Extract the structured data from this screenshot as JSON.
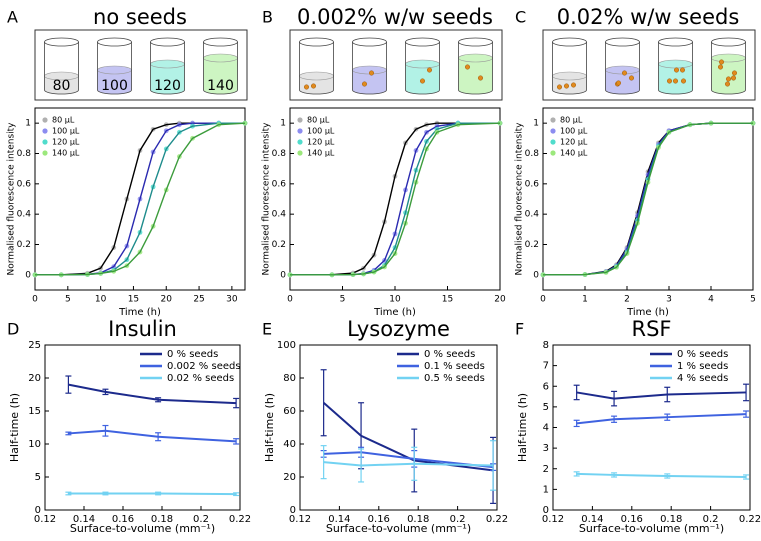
{
  "chart_data": [
    {
      "type": "line",
      "label": "A",
      "title": "no seeds",
      "beaker_labels": [
        "80",
        "100",
        "120",
        "140"
      ],
      "x_label": "Time (h)",
      "y_label": "Normalised fluorescence intensity",
      "x": [
        0,
        4,
        8,
        10,
        12,
        14,
        16,
        18,
        20,
        22,
        24,
        28,
        32
      ],
      "xlim": [
        0,
        32
      ],
      "xticks": [
        0,
        5,
        10,
        15,
        20,
        25,
        30
      ],
      "ylim": [
        -0.1,
        1.1
      ],
      "yticks": [
        0,
        0.2,
        0.4,
        0.6,
        0.8,
        1
      ],
      "legend": "upper left",
      "series": [
        {
          "name": "80 μL",
          "color": "#b0b0b0",
          "line_color": "#000000",
          "values": [
            0,
            0,
            0.01,
            0.044,
            0.18,
            0.5,
            0.82,
            0.96,
            0.99,
            1,
            1,
            1,
            1
          ]
        },
        {
          "name": "100 μL",
          "color": "#8c8cf0",
          "line_color": "#2a2ab0",
          "values": [
            0,
            0,
            0.003,
            0.013,
            0.054,
            0.19,
            0.5,
            0.81,
            0.95,
            0.99,
            1,
            1,
            1
          ]
        },
        {
          "name": "120 μL",
          "color": "#50dccc",
          "line_color": "#1e8c8c",
          "values": [
            0,
            0,
            0.002,
            0.009,
            0.031,
            0.1,
            0.28,
            0.58,
            0.83,
            0.94,
            0.98,
            1,
            1
          ]
        },
        {
          "name": "140 μL",
          "color": "#9ce87c",
          "line_color": "#3c9c3c",
          "values": [
            0,
            0,
            0.003,
            0.009,
            0.023,
            0.06,
            0.15,
            0.32,
            0.56,
            0.78,
            0.9,
            0.99,
            1
          ]
        }
      ]
    },
    {
      "type": "line",
      "label": "B",
      "title": "0.002% w/w seeds",
      "x_label": "Time (h)",
      "y_label": "Normalised fluorescence intensity",
      "x": [
        0,
        4,
        6,
        7,
        8,
        9,
        10,
        11,
        12,
        13,
        14,
        16,
        20
      ],
      "xlim": [
        0,
        20
      ],
      "xticks": [
        0,
        5,
        10,
        15,
        20
      ],
      "ylim": [
        -0.1,
        1.1
      ],
      "yticks": [
        0,
        0.2,
        0.4,
        0.6,
        0.8,
        1
      ],
      "legend": "upper left",
      "series": [
        {
          "name": "80 μL",
          "color": "#b0b0b0",
          "line_color": "#000000",
          "values": [
            0,
            0.001,
            0.012,
            0.043,
            0.13,
            0.35,
            0.65,
            0.87,
            0.96,
            0.99,
            1,
            1,
            1
          ]
        },
        {
          "name": "100 μL",
          "color": "#8c8cf0",
          "line_color": "#2a2ab0",
          "values": [
            0,
            0,
            0.002,
            0.009,
            0.03,
            0.095,
            0.27,
            0.56,
            0.82,
            0.94,
            0.98,
            1,
            1
          ]
        },
        {
          "name": "120 μL",
          "color": "#50dccc",
          "line_color": "#1e8c8c",
          "values": [
            0,
            0,
            0.002,
            0.006,
            0.02,
            0.063,
            0.18,
            0.41,
            0.69,
            0.88,
            0.96,
            1,
            1
          ]
        },
        {
          "name": "140 μL",
          "color": "#9ce87c",
          "line_color": "#3c9c3c",
          "values": [
            0,
            0,
            0.002,
            0.006,
            0.018,
            0.052,
            0.14,
            0.34,
            0.61,
            0.83,
            0.94,
            0.99,
            1
          ]
        }
      ]
    },
    {
      "type": "line",
      "label": "C",
      "title": "0.02% w/w seeds",
      "x_label": "Time (h)",
      "y_label": "Normalised fluorescence intensity",
      "x": [
        0,
        1,
        1.5,
        1.75,
        2,
        2.25,
        2.5,
        2.75,
        3,
        3.5,
        4,
        5
      ],
      "xlim": [
        0,
        5
      ],
      "xticks": [
        0,
        1,
        2,
        3,
        4,
        5
      ],
      "ylim": [
        -0.1,
        1.1
      ],
      "yticks": [
        0,
        0.2,
        0.4,
        0.6,
        0.8,
        1
      ],
      "legend": "upper left",
      "series": [
        {
          "name": "80 μL",
          "color": "#b0b0b0",
          "line_color": "#000000",
          "values": [
            0,
            0.002,
            0.023,
            0.067,
            0.18,
            0.41,
            0.68,
            0.87,
            0.95,
            0.99,
            1,
            1
          ]
        },
        {
          "name": "100 μL",
          "color": "#8c8cf0",
          "line_color": "#2a2ab0",
          "values": [
            0,
            0.002,
            0.02,
            0.06,
            0.17,
            0.39,
            0.66,
            0.86,
            0.95,
            0.99,
            1,
            1
          ]
        },
        {
          "name": "120 μL",
          "color": "#50dccc",
          "line_color": "#1e8c8c",
          "values": [
            0,
            0.002,
            0.018,
            0.055,
            0.15,
            0.36,
            0.63,
            0.85,
            0.94,
            0.99,
            1,
            1
          ]
        },
        {
          "name": "140 μL",
          "color": "#9ce87c",
          "line_color": "#3c9c3c",
          "values": [
            0,
            0.002,
            0.016,
            0.05,
            0.14,
            0.34,
            0.61,
            0.84,
            0.94,
            0.99,
            1,
            1
          ]
        }
      ]
    },
    {
      "type": "errorline",
      "label": "D",
      "title": "Insulin",
      "x_label": "Surface-to-volume (mm⁻¹)",
      "y_label": "Half-time (h)",
      "x": [
        0.132,
        0.151,
        0.178,
        0.218
      ],
      "xlim": [
        0.12,
        0.22
      ],
      "xticks": [
        0.12,
        0.14,
        0.16,
        0.18,
        0.2,
        0.22
      ],
      "ylim": [
        0,
        25
      ],
      "yticks": [
        0,
        5,
        10,
        15,
        20,
        25
      ],
      "legend": "upper right",
      "series": [
        {
          "name": "0 % seeds",
          "color": "#1c2a8c",
          "values": [
            19,
            17.9,
            16.7,
            16.2
          ],
          "errors": [
            1.3,
            0.4,
            0.3,
            0.7
          ]
        },
        {
          "name": "0.002 % seeds",
          "color": "#3f62e0",
          "values": [
            11.6,
            12,
            11.1,
            10.4
          ],
          "errors": [
            0.2,
            0.8,
            0.6,
            0.4
          ]
        },
        {
          "name": "0.02 % seeds",
          "color": "#72d2f2",
          "values": [
            2.5,
            2.5,
            2.5,
            2.4
          ],
          "errors": [
            0.2,
            0.2,
            0.2,
            0.2
          ]
        }
      ]
    },
    {
      "type": "errorline",
      "label": "E",
      "title": "Lysozyme",
      "x_label": "Surface-to-volume (mm⁻¹)",
      "y_label": "Half-time (h)",
      "x": [
        0.132,
        0.151,
        0.178,
        0.218
      ],
      "xlim": [
        0.12,
        0.22
      ],
      "xticks": [
        0.12,
        0.14,
        0.16,
        0.18,
        0.2,
        0.22
      ],
      "ylim": [
        0,
        100
      ],
      "yticks": [
        0,
        20,
        40,
        60,
        80,
        100
      ],
      "legend": "upper right",
      "series": [
        {
          "name": "0 % seeds",
          "color": "#1c2a8c",
          "values": [
            65,
            45,
            30,
            24
          ],
          "errors": [
            20,
            20,
            19,
            20
          ]
        },
        {
          "name": "0.1 % seeds",
          "color": "#3f62e0",
          "values": [
            34,
            35,
            31,
            26
          ],
          "errors": [
            2,
            3,
            5,
            2
          ]
        },
        {
          "name": "0.5 % seeds",
          "color": "#72d2f2",
          "values": [
            29,
            27,
            28,
            27
          ],
          "errors": [
            10,
            10,
            10,
            15
          ]
        }
      ]
    },
    {
      "type": "errorline",
      "label": "F",
      "title": "RSF",
      "x_label": "Surface-to-volume (mm⁻¹)",
      "y_label": "Half-time (h)",
      "x": [
        0.132,
        0.151,
        0.178,
        0.218
      ],
      "xlim": [
        0.12,
        0.22
      ],
      "xticks": [
        0.12,
        0.14,
        0.16,
        0.18,
        0.2,
        0.22
      ],
      "ylim": [
        0,
        8
      ],
      "yticks": [
        0,
        1,
        2,
        3,
        4,
        5,
        6,
        7,
        8
      ],
      "legend": "upper right",
      "series": [
        {
          "name": "0 % seeds",
          "color": "#1c2a8c",
          "values": [
            5.7,
            5.4,
            5.6,
            5.7
          ],
          "errors": [
            0.35,
            0.35,
            0.35,
            0.4
          ]
        },
        {
          "name": "1 % seeds",
          "color": "#3f62e0",
          "values": [
            4.2,
            4.4,
            4.5,
            4.65
          ],
          "errors": [
            0.15,
            0.15,
            0.15,
            0.15
          ]
        },
        {
          "name": "4 % seeds",
          "color": "#72d2f2",
          "values": [
            1.75,
            1.7,
            1.65,
            1.6
          ],
          "errors": [
            0.1,
            0.1,
            0.1,
            0.1
          ]
        }
      ]
    }
  ]
}
